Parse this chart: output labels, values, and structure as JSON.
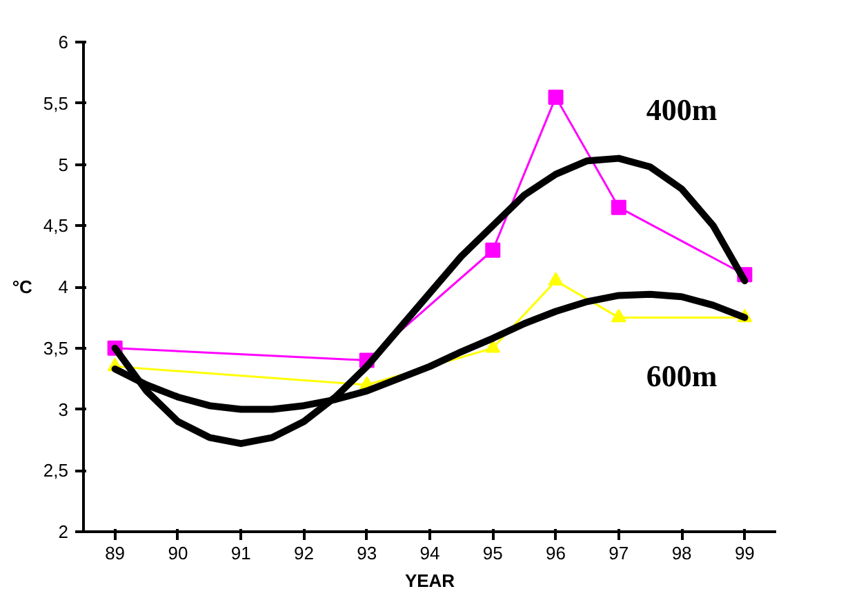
{
  "chart_data": {
    "type": "line",
    "xlabel": "YEAR",
    "ylabel": "°C",
    "xlim": [
      88.5,
      99.5
    ],
    "xticks": [
      89,
      90,
      91,
      92,
      93,
      94,
      95,
      96,
      97,
      98,
      99
    ],
    "ylim": [
      2,
      6
    ],
    "yticks": [
      2,
      {
        "value": 2.5,
        "label": "2,5"
      },
      3,
      {
        "value": 3.5,
        "label": "3,5"
      },
      4,
      {
        "value": 4.5,
        "label": "4,5"
      },
      5,
      {
        "value": 5.5,
        "label": "5,5"
      },
      6
    ],
    "grid": false,
    "series": [
      {
        "color": "#ff00ff",
        "marker": "square",
        "x": [
          89,
          93,
          95,
          96,
          97,
          99
        ],
        "values": [
          3.5,
          3.4,
          4.3,
          5.55,
          4.65,
          4.1
        ]
      },
      {
        "color": "#ffff00",
        "marker": "triangle",
        "x": [
          89,
          93,
          95,
          96,
          97,
          99
        ],
        "values": [
          3.35,
          3.2,
          3.5,
          4.05,
          3.75,
          3.75
        ]
      },
      {
        "name": "400m",
        "color": "#000000",
        "marker": "none",
        "x": [
          89,
          89.5,
          90,
          90.5,
          91,
          91.5,
          92,
          92.5,
          93,
          93.5,
          94,
          94.5,
          95,
          95.5,
          96,
          96.5,
          97,
          97.5,
          98,
          98.5,
          99
        ],
        "values": [
          3.5,
          3.15,
          2.9,
          2.77,
          2.72,
          2.77,
          2.9,
          3.1,
          3.35,
          3.65,
          3.95,
          4.25,
          4.5,
          4.75,
          4.92,
          5.03,
          5.05,
          4.98,
          4.8,
          4.5,
          4.05
        ]
      },
      {
        "name": "600m",
        "color": "#000000",
        "marker": "none",
        "x": [
          89,
          89.5,
          90,
          90.5,
          91,
          91.5,
          92,
          92.5,
          93,
          93.5,
          94,
          94.5,
          95,
          95.5,
          96,
          96.5,
          97,
          97.5,
          98,
          98.5,
          99
        ],
        "values": [
          3.33,
          3.2,
          3.1,
          3.03,
          3.0,
          3.0,
          3.03,
          3.08,
          3.15,
          3.25,
          3.35,
          3.47,
          3.58,
          3.7,
          3.8,
          3.88,
          3.93,
          3.94,
          3.92,
          3.85,
          3.75
        ]
      }
    ]
  }
}
